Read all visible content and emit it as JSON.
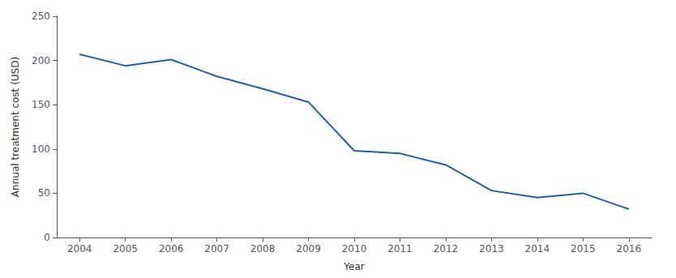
{
  "chart_data": {
    "type": "line",
    "x": [
      2004,
      2005,
      2006,
      2007,
      2008,
      2009,
      2010,
      2011,
      2012,
      2013,
      2014,
      2015,
      2016
    ],
    "values": [
      207,
      194,
      201,
      182,
      168,
      153,
      98,
      95,
      82,
      53,
      45,
      50,
      32
    ],
    "color": "#2060a8",
    "xlabel": "Year",
    "ylabel": "Annual treatment cost (USD)",
    "xlim": [
      2003.5,
      2016.5
    ],
    "ylim": [
      0,
      250
    ],
    "xticks": [
      2004,
      2005,
      2006,
      2007,
      2008,
      2009,
      2010,
      2011,
      2012,
      2013,
      2014,
      2015,
      2016
    ],
    "yticks": [
      0,
      50,
      100,
      150,
      200,
      250
    ],
    "grid": false
  }
}
